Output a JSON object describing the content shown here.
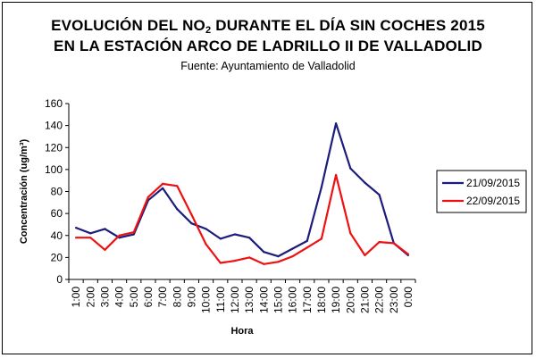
{
  "title": {
    "line1_before": "EVOLUCIÓN DEL NO",
    "line1_sub": "2",
    "line1_after": " DURANTE EL DÍA SIN COCHES 2015",
    "line2": "EN LA ESTACIÓN ARCO DE LADRILLO II DE VALLADOLID"
  },
  "subtitle": "Fuente: Ayuntamiento de Valladolid",
  "chart_data": {
    "type": "line",
    "xlabel": "Hora",
    "ylabel": "Concentración (ug/m³)",
    "ylim": [
      0,
      160
    ],
    "yticks": [
      0,
      20,
      40,
      60,
      80,
      100,
      120,
      140,
      160
    ],
    "grid": false,
    "legend_position": "right",
    "categories": [
      "1:00",
      "2:00",
      "3:00",
      "4:00",
      "5:00",
      "6:00",
      "7:00",
      "8:00",
      "9:00",
      "10:00",
      "11:00",
      "12:00",
      "13:00",
      "14:00",
      "15:00",
      "16:00",
      "17:00",
      "18:00",
      "19:00",
      "20:00",
      "21:00",
      "22:00",
      "23:00",
      "0:00"
    ],
    "series": [
      {
        "name": "21/09/2015",
        "color": "#1c1c7c",
        "values": [
          47,
          42,
          46,
          38,
          41,
          72,
          83,
          64,
          51,
          46,
          37,
          41,
          38,
          25,
          21,
          28,
          35,
          84,
          142,
          101,
          88,
          77,
          33,
          22
        ]
      },
      {
        "name": "22/09/2015",
        "color": "#ee1111",
        "values": [
          38,
          38,
          27,
          40,
          43,
          75,
          87,
          85,
          59,
          32,
          15,
          17,
          20,
          14,
          16,
          21,
          29,
          37,
          95,
          42,
          22,
          34,
          33,
          23
        ]
      }
    ]
  }
}
